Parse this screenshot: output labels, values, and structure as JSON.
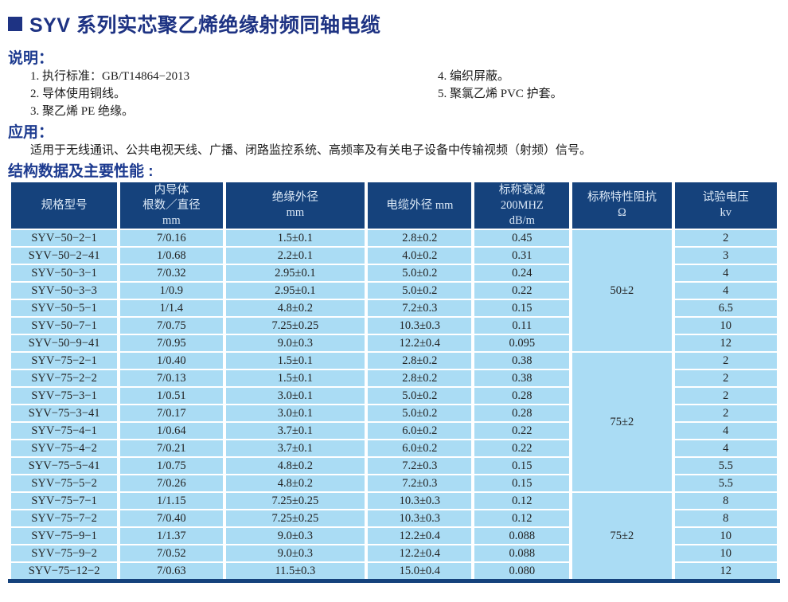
{
  "page": {
    "title": "SYV 系列实芯聚乙烯绝缘射频同轴电缆"
  },
  "description": {
    "heading": "说明：",
    "left_items": [
      "1. 执行标准：GB/T14864−2013",
      "2. 导体使用铜线。",
      "3. 聚乙烯 PE 绝缘。"
    ],
    "right_items": [
      "4. 编织屏蔽。",
      "5. 聚氯乙烯 PVC 护套。"
    ]
  },
  "application": {
    "heading": "应用：",
    "text": "适用于无线通讯、公共电视天线、广播、闭路监控系统、高频率及有关电子设备中传输视频（射频）信号。"
  },
  "table_section": {
    "heading": "结构数据及主要性能 :"
  },
  "table": {
    "headers": [
      "规格型号",
      "内导体\n根数／直径\nmm",
      "绝缘外径\nmm",
      "电缆外径 mm",
      "标称衰减\n200MHZ\ndB/m",
      "标称特性阻抗\nΩ",
      "试验电压\nkv"
    ],
    "groups": [
      {
        "impedance": "50±2",
        "rows": [
          [
            "SYV−50−2−1",
            "7/0.16",
            "1.5±0.1",
            "2.8±0.2",
            "0.45",
            "2"
          ],
          [
            "SYV−50−2−41",
            "1/0.68",
            "2.2±0.1",
            "4.0±0.2",
            "0.31",
            "3"
          ],
          [
            "SYV−50−3−1",
            "7/0.32",
            "2.95±0.1",
            "5.0±0.2",
            "0.24",
            "4"
          ],
          [
            "SYV−50−3−3",
            "1/0.9",
            "2.95±0.1",
            "5.0±0.2",
            "0.22",
            "4"
          ],
          [
            "SYV−50−5−1",
            "1/1.4",
            "4.8±0.2",
            "7.2±0.3",
            "0.15",
            "6.5"
          ],
          [
            "SYV−50−7−1",
            "7/0.75",
            "7.25±0.25",
            "10.3±0.3",
            "0.11",
            "10"
          ],
          [
            "SYV−50−9−41",
            "7/0.95",
            "9.0±0.3",
            "12.2±0.4",
            "0.095",
            "12"
          ]
        ]
      },
      {
        "impedance": "75±2",
        "rows": [
          [
            "SYV−75−2−1",
            "1/0.40",
            "1.5±0.1",
            "2.8±0.2",
            "0.38",
            "2"
          ],
          [
            "SYV−75−2−2",
            "7/0.13",
            "1.5±0.1",
            "2.8±0.2",
            "0.38",
            "2"
          ],
          [
            "SYV−75−3−1",
            "1/0.51",
            "3.0±0.1",
            "5.0±0.2",
            "0.28",
            "2"
          ],
          [
            "SYV−75−3−41",
            "7/0.17",
            "3.0±0.1",
            "5.0±0.2",
            "0.28",
            "2"
          ],
          [
            "SYV−75−4−1",
            "1/0.64",
            "3.7±0.1",
            "6.0±0.2",
            "0.22",
            "4"
          ],
          [
            "SYV−75−4−2",
            "7/0.21",
            "3.7±0.1",
            "6.0±0.2",
            "0.22",
            "4"
          ],
          [
            "SYV−75−5−41",
            "1/0.75",
            "4.8±0.2",
            "7.2±0.3",
            "0.15",
            "5.5"
          ],
          [
            "SYV−75−5−2",
            "7/0.26",
            "4.8±0.2",
            "7.2±0.3",
            "0.15",
            "5.5"
          ]
        ]
      },
      {
        "impedance": "75±2",
        "rows": [
          [
            "SYV−75−7−1",
            "1/1.15",
            "7.25±0.25",
            "10.3±0.3",
            "0.12",
            "8"
          ],
          [
            "SYV−75−7−2",
            "7/0.40",
            "7.25±0.25",
            "10.3±0.3",
            "0.12",
            "8"
          ],
          [
            "SYV−75−9−1",
            "1/1.37",
            "9.0±0.3",
            "12.2±0.4",
            "0.088",
            "10"
          ],
          [
            "SYV−75−9−2",
            "7/0.52",
            "9.0±0.3",
            "12.2±0.4",
            "0.088",
            "10"
          ],
          [
            "SYV−75−12−2",
            "7/0.63",
            "11.5±0.3",
            "15.0±0.4",
            "0.080",
            "12"
          ]
        ]
      }
    ]
  },
  "colors": {
    "title_navy": "#1e3383",
    "heading_blue": "#1c3a8f",
    "table_header_bg": "#15427c",
    "table_row_bg": "#aadcf4",
    "table_bottom_bar": "#15427c",
    "header_text": "#dce9f7"
  }
}
